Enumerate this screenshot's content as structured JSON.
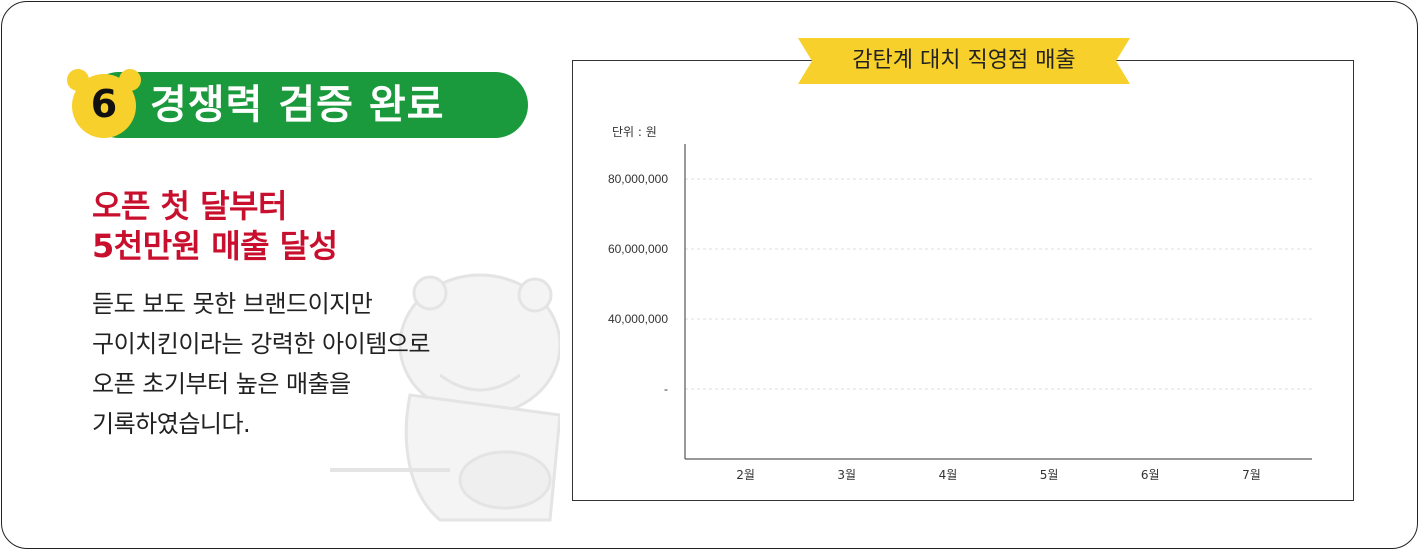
{
  "badge": {
    "number": "6",
    "title": "경쟁력 검증 완료"
  },
  "headline": {
    "line1": "오픈 첫 달부터",
    "line2": "5천만원 매출 달성"
  },
  "body": {
    "lines": [
      "듣도 보도 못한 브랜드이지만",
      "구이치킨이라는 강력한 아이템으로",
      "오픈 초기부터 높은 매출을",
      "기록하였습니다."
    ]
  },
  "colors": {
    "green": "#1a9a3c",
    "yellow": "#f7d02b",
    "red": "#c8102e",
    "gridline": "#dddddd"
  },
  "chart_data": {
    "type": "bar",
    "title": "감탄계 대치 직영점 매출",
    "unit_label": "단위 : 원",
    "categories": [
      "2월",
      "3월",
      "4월",
      "5월",
      "6월",
      "7월"
    ],
    "y_ticks": [
      {
        "value": 80000000,
        "label": "80,000,000"
      },
      {
        "value": 60000000,
        "label": "60,000,000"
      },
      {
        "value": 40000000,
        "label": "40,000,000"
      },
      {
        "value": 20000000,
        "label": "-"
      }
    ],
    "ylim": [
      0,
      90000000
    ],
    "series": [],
    "grid": true
  }
}
